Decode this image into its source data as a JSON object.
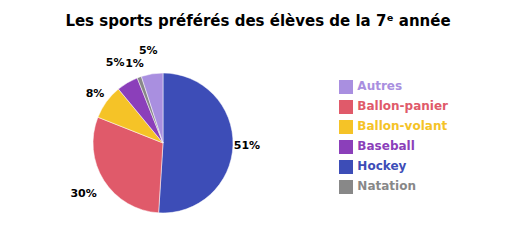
{
  "chart_data": {
    "type": "pie",
    "title": "Les sports préférés des élèves de la 7ᵉ année",
    "categories": [
      "Hockey",
      "Ballon-panier",
      "Ballon-volant",
      "Baseball",
      "Natation",
      "Autres"
    ],
    "values": [
      51,
      30,
      8,
      5,
      1,
      5
    ],
    "value_labels": [
      "51%",
      "30%",
      "8%",
      "5%",
      "1%",
      "5%"
    ],
    "data_labels": true,
    "colors": [
      "#3d4db7",
      "#e05a6a",
      "#f5c327",
      "#8b3fba",
      "#888888",
      "#a98fe0"
    ],
    "legend": "right"
  }
}
